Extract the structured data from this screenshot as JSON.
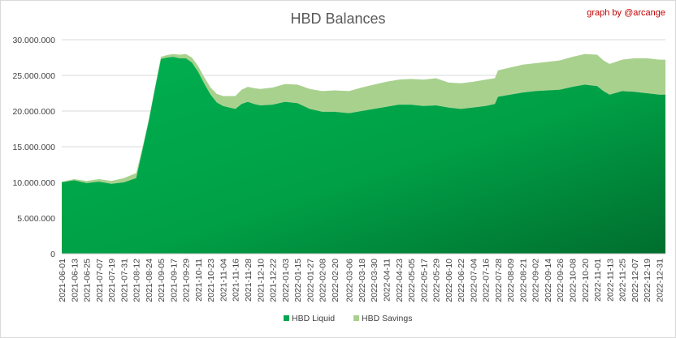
{
  "chart_data": {
    "type": "area",
    "stacked": true,
    "title": "HBD Balances",
    "credit": "graph by @arcange",
    "ylim": [
      0,
      30000000
    ],
    "y_ticks": [
      0,
      5000000,
      10000000,
      15000000,
      20000000,
      25000000,
      30000000
    ],
    "y_tick_labels": [
      "0",
      "5.000.000",
      "10.000.000",
      "15.000.000",
      "20.000.000",
      "25.000.000",
      "30.000.000"
    ],
    "x_tick_labels": [
      "2021-06-01",
      "2021-06-13",
      "2021-06-25",
      "2021-07-07",
      "2021-07-19",
      "2021-07-31",
      "2021-08-12",
      "2021-08-24",
      "2021-09-05",
      "2021-09-17",
      "2021-09-29",
      "2021-10-11",
      "2021-10-23",
      "2021-11-04",
      "2021-11-16",
      "2021-11-28",
      "2021-12-10",
      "2021-12-22",
      "2022-01-03",
      "2022-01-15",
      "2022-01-27",
      "2022-02-08",
      "2022-02-20",
      "2022-03-06",
      "2022-03-18",
      "2022-03-30",
      "2022-04-11",
      "2022-04-23",
      "2022-05-05",
      "2022-05-17",
      "2022-05-29",
      "2022-06-10",
      "2022-06-22",
      "2022-07-04",
      "2022-07-16",
      "2022-07-28",
      "2022-08-09",
      "2022-08-21",
      "2022-09-02",
      "2022-09-14",
      "2022-09-26",
      "2022-10-08",
      "2022-10-20",
      "2022-11-01",
      "2022-11-13",
      "2022-11-25",
      "2022-12-07",
      "2022-12-19",
      "2022-12-31"
    ],
    "x": [
      "2021-06-01",
      "2021-06-13",
      "2021-06-25",
      "2021-07-07",
      "2021-07-19",
      "2021-07-31",
      "2021-08-12",
      "2021-08-18",
      "2021-08-24",
      "2021-08-30",
      "2021-09-05",
      "2021-09-11",
      "2021-09-17",
      "2021-09-23",
      "2021-09-29",
      "2021-10-05",
      "2021-10-11",
      "2021-10-17",
      "2021-10-23",
      "2021-10-29",
      "2021-11-04",
      "2021-11-10",
      "2021-11-16",
      "2021-11-22",
      "2021-11-28",
      "2021-12-04",
      "2021-12-10",
      "2021-12-22",
      "2022-01-03",
      "2022-01-15",
      "2022-01-27",
      "2022-02-08",
      "2022-02-20",
      "2022-03-06",
      "2022-03-18",
      "2022-03-30",
      "2022-04-11",
      "2022-04-23",
      "2022-05-05",
      "2022-05-17",
      "2022-05-29",
      "2022-06-10",
      "2022-06-22",
      "2022-07-04",
      "2022-07-16",
      "2022-07-25",
      "2022-07-28",
      "2022-08-09",
      "2022-08-21",
      "2022-09-02",
      "2022-09-14",
      "2022-09-26",
      "2022-10-08",
      "2022-10-20",
      "2022-11-01",
      "2022-11-07",
      "2022-11-13",
      "2022-11-25",
      "2022-12-07",
      "2022-12-19",
      "2022-12-31",
      "2023-01-06"
    ],
    "series": [
      {
        "name": "HBD Liquid",
        "color": "#00a650",
        "values": [
          10000000,
          10300000,
          9900000,
          10100000,
          9800000,
          10000000,
          10600000,
          14500000,
          18500000,
          23000000,
          27300000,
          27500000,
          27600000,
          27400000,
          27400000,
          26800000,
          25500000,
          23800000,
          22300000,
          21200000,
          20700000,
          20500000,
          20300000,
          21000000,
          21300000,
          21000000,
          20800000,
          20900000,
          21300000,
          21100000,
          20300000,
          19900000,
          19900000,
          19700000,
          20000000,
          20300000,
          20600000,
          20900000,
          20900000,
          20700000,
          20800000,
          20500000,
          20300000,
          20500000,
          20700000,
          21000000,
          22000000,
          22300000,
          22600000,
          22800000,
          22900000,
          23000000,
          23400000,
          23700000,
          23500000,
          22800000,
          22300000,
          22800000,
          22700000,
          22500000,
          22300000,
          22300000
        ]
      },
      {
        "name": "HBD Savings",
        "color": "#a9d18e",
        "values": [
          100000,
          150000,
          300000,
          350000,
          400000,
          600000,
          700000,
          300000,
          200000,
          200000,
          300000,
          350000,
          400000,
          500000,
          600000,
          700000,
          800000,
          900000,
          1000000,
          1200000,
          1400000,
          1600000,
          1800000,
          2000000,
          2100000,
          2200000,
          2300000,
          2400000,
          2500000,
          2600000,
          2800000,
          2900000,
          3000000,
          3100000,
          3300000,
          3400000,
          3500000,
          3500000,
          3600000,
          3700000,
          3800000,
          3500000,
          3600000,
          3600000,
          3700000,
          3600000,
          3700000,
          3800000,
          3900000,
          3900000,
          4000000,
          4100000,
          4200000,
          4300000,
          4400000,
          4300000,
          4300000,
          4400000,
          4700000,
          4900000,
          4900000,
          4900000
        ]
      }
    ],
    "legend": {
      "placement": "bottom",
      "items": [
        "HBD Liquid",
        "HBD Savings"
      ]
    },
    "grid": true
  }
}
